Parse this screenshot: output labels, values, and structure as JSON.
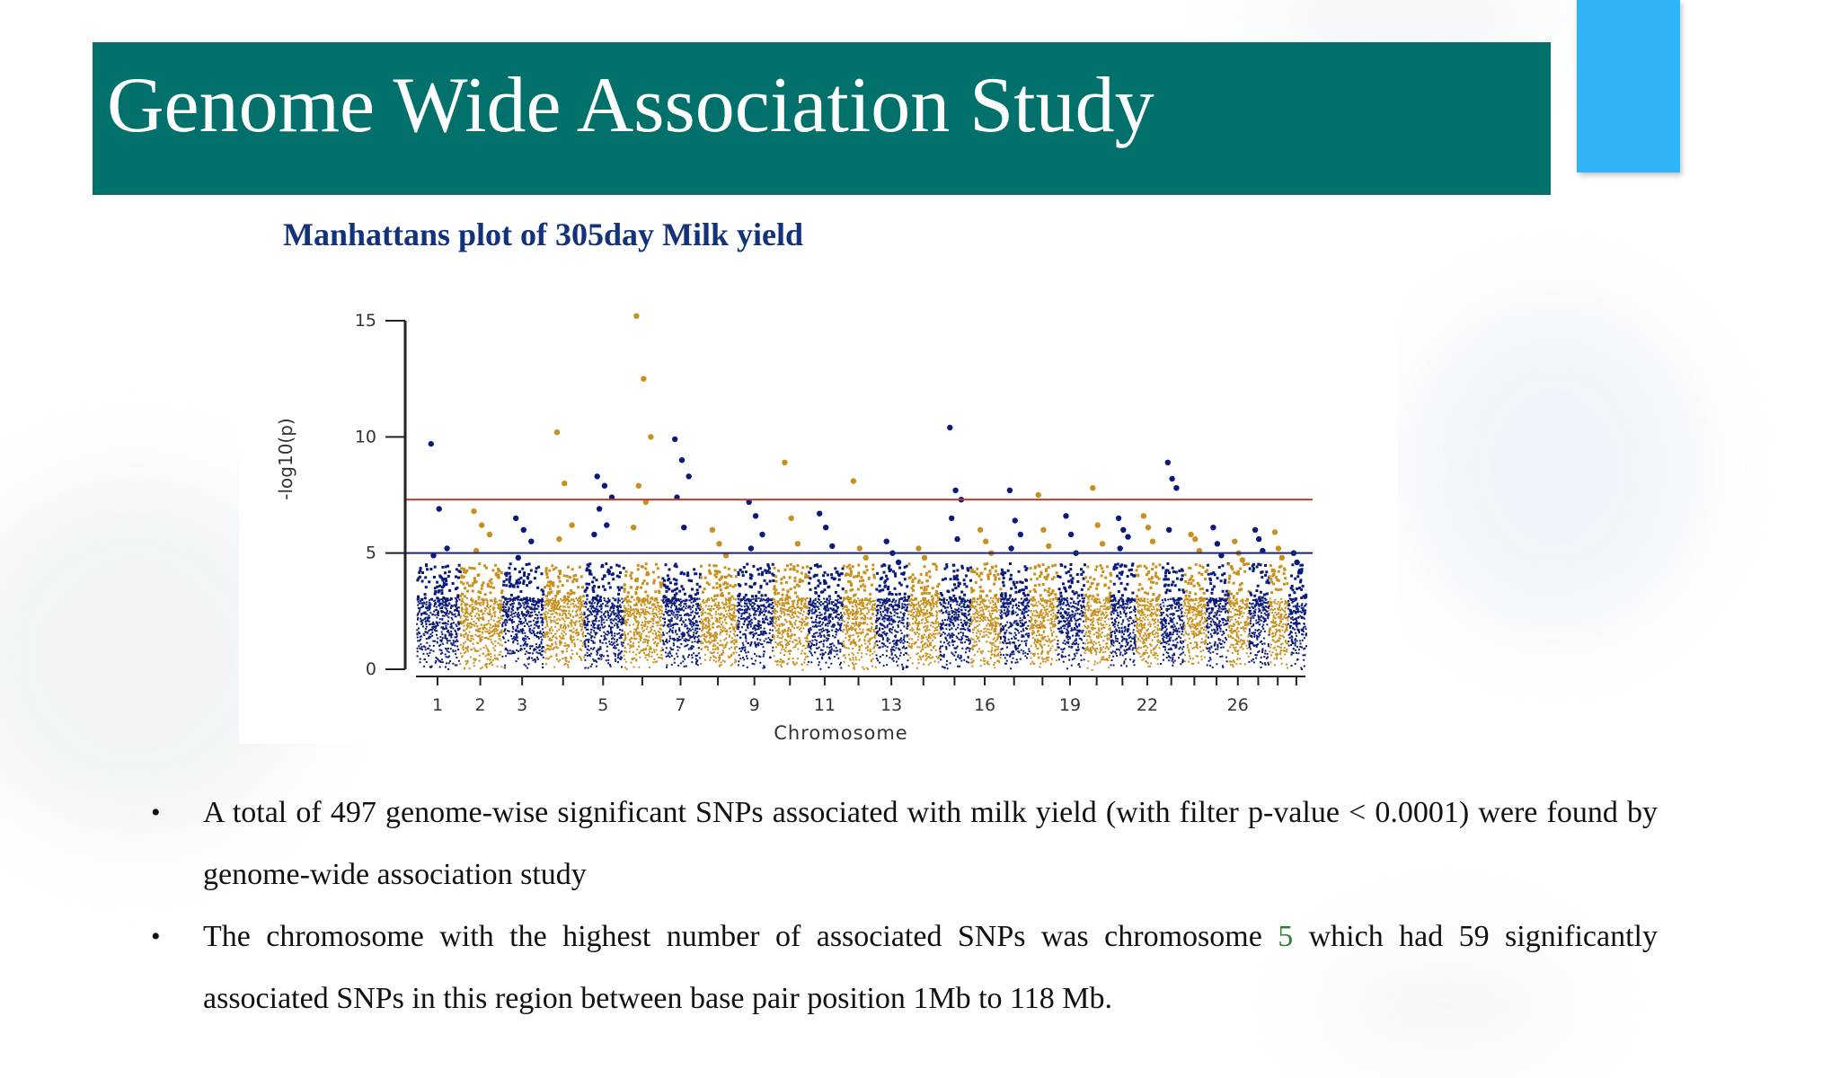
{
  "slide": {
    "title": "Genome Wide Association Study",
    "plot_title": "Manhattans plot of 305day Milk yield",
    "colors": {
      "title_bar": "#02716b",
      "accent_tab": "#2fb4f8",
      "plot_title": "#12327a",
      "highlight": "#2e7d32"
    }
  },
  "chart_data": {
    "type": "scatter",
    "subtype": "manhattan",
    "title": "",
    "xlabel": "Chromosome",
    "ylabel": "-log10(p)",
    "ylim": [
      0,
      15
    ],
    "yticks": [
      "0",
      "5",
      "10",
      "15"
    ],
    "xtick_labels": [
      {
        "chromosome": 1,
        "label": "1"
      },
      {
        "chromosome": 2,
        "label": "2"
      },
      {
        "chromosome": 3,
        "label": "3"
      },
      {
        "chromosome": 5,
        "label": "5"
      },
      {
        "chromosome": 7,
        "label": "7"
      },
      {
        "chromosome": 9,
        "label": "9"
      },
      {
        "chromosome": 11,
        "label": "11"
      },
      {
        "chromosome": 13,
        "label": "13"
      },
      {
        "chromosome": 16,
        "label": "16"
      },
      {
        "chromosome": 19,
        "label": "19"
      },
      {
        "chromosome": 22,
        "label": "22"
      },
      {
        "chromosome": 26,
        "label": "26"
      }
    ],
    "series_colors": [
      "#0a1a7a",
      "#c8901e"
    ],
    "thresholds": [
      {
        "value": 7.3,
        "color": "#c0392b"
      },
      {
        "value": 5.0,
        "color": "#1a237e"
      }
    ],
    "grid": false,
    "chromosomes": [
      {
        "chr": 1,
        "max": 9.7,
        "top_points": [
          9.7,
          6.9,
          5.2,
          4.9
        ]
      },
      {
        "chr": 2,
        "max": 6.8,
        "top_points": [
          6.8,
          6.2,
          5.8,
          5.1
        ]
      },
      {
        "chr": 3,
        "max": 6.5,
        "top_points": [
          6.5,
          6.0,
          5.5,
          4.8
        ]
      },
      {
        "chr": 4,
        "max": 10.2,
        "top_points": [
          10.2,
          8.0,
          6.2,
          5.6
        ]
      },
      {
        "chr": 5,
        "max": 8.3,
        "top_points": [
          8.3,
          7.9,
          7.4,
          6.9,
          6.2,
          5.8
        ]
      },
      {
        "chr": 6,
        "max": 15.2,
        "top_points": [
          15.2,
          12.5,
          10.0,
          7.9,
          7.2,
          6.1
        ]
      },
      {
        "chr": 7,
        "max": 9.9,
        "top_points": [
          9.9,
          9.0,
          8.3,
          7.4,
          6.1
        ]
      },
      {
        "chr": 8,
        "max": 6.0,
        "top_points": [
          6.0,
          5.4,
          4.9
        ]
      },
      {
        "chr": 9,
        "max": 7.2,
        "top_points": [
          7.2,
          6.6,
          5.8,
          5.2
        ]
      },
      {
        "chr": 10,
        "max": 8.9,
        "top_points": [
          8.9,
          6.5,
          5.4
        ]
      },
      {
        "chr": 11,
        "max": 6.7,
        "top_points": [
          6.7,
          6.1,
          5.3
        ]
      },
      {
        "chr": 12,
        "max": 8.1,
        "top_points": [
          8.1,
          5.2,
          4.8
        ]
      },
      {
        "chr": 13,
        "max": 5.5,
        "top_points": [
          5.5,
          5.0,
          4.6
        ]
      },
      {
        "chr": 14,
        "max": 5.2,
        "top_points": [
          5.2,
          4.8
        ]
      },
      {
        "chr": 15,
        "max": 10.4,
        "top_points": [
          10.4,
          7.7,
          7.3,
          6.5,
          5.6
        ]
      },
      {
        "chr": 16,
        "max": 6.0,
        "top_points": [
          6.0,
          5.5,
          5.0
        ]
      },
      {
        "chr": 17,
        "max": 7.7,
        "top_points": [
          7.7,
          6.4,
          5.8,
          5.2
        ]
      },
      {
        "chr": 18,
        "max": 7.5,
        "top_points": [
          7.5,
          6.0,
          5.3
        ]
      },
      {
        "chr": 19,
        "max": 6.6,
        "top_points": [
          6.6,
          5.8,
          5.0
        ]
      },
      {
        "chr": 20,
        "max": 7.8,
        "top_points": [
          7.8,
          6.2,
          5.4
        ]
      },
      {
        "chr": 21,
        "max": 6.5,
        "top_points": [
          6.5,
          6.0,
          5.7,
          5.2
        ]
      },
      {
        "chr": 22,
        "max": 6.6,
        "top_points": [
          6.6,
          6.1,
          5.5
        ]
      },
      {
        "chr": 23,
        "max": 8.9,
        "top_points": [
          8.9,
          8.2,
          7.8,
          6.0
        ]
      },
      {
        "chr": 24,
        "max": 5.8,
        "top_points": [
          5.8,
          5.6,
          5.1
        ]
      },
      {
        "chr": 25,
        "max": 6.1,
        "top_points": [
          6.1,
          5.4,
          4.9
        ]
      },
      {
        "chr": 26,
        "max": 5.5,
        "top_points": [
          5.5,
          5.0,
          4.7
        ]
      },
      {
        "chr": 27,
        "max": 6.0,
        "top_points": [
          6.0,
          5.6,
          5.1
        ]
      },
      {
        "chr": 28,
        "max": 5.9,
        "top_points": [
          5.9,
          5.2,
          4.8
        ]
      },
      {
        "chr": 29,
        "max": 5.0,
        "top_points": [
          5.0,
          4.6,
          4.2
        ]
      }
    ]
  },
  "bullets": [
    {
      "text": "A total of 497 genome-wise significant SNPs associated with milk yield (with filter p-value < 0.0001) were found by genome-wide association study"
    },
    {
      "before": "The chromosome with the highest number of associated SNPs was chromosome ",
      "highlight": "5",
      "after": " which had 59 significantly associated SNPs in this region between base pair position 1Mb to 118 Mb."
    }
  ]
}
